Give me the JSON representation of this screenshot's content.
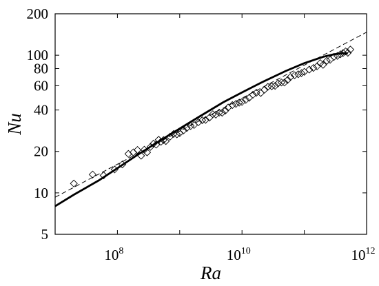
{
  "chart_data": {
    "type": "scatter",
    "xlabel": "Ra",
    "ylabel": "Nu",
    "x_scale": "log",
    "y_scale": "log",
    "xlim": [
      10000000.0,
      1000000000000.0
    ],
    "ylim": [
      5,
      200
    ],
    "grid": false,
    "x_ticks": [
      {
        "base": "10",
        "exp": "8",
        "value": 100000000.0
      },
      {
        "base": "10",
        "exp": "10",
        "value": 10000000000.0
      },
      {
        "base": "10",
        "exp": "12",
        "value": 1000000000000.0
      }
    ],
    "y_ticks": [
      {
        "label": "5",
        "value": 5
      },
      {
        "label": "10",
        "value": 10
      },
      {
        "label": "20",
        "value": 20
      },
      {
        "label": "40",
        "value": 40
      },
      {
        "label": "60",
        "value": 60
      },
      {
        "label": "80",
        "value": 80
      },
      {
        "label": "100",
        "value": 100
      },
      {
        "label": "200",
        "value": 200
      }
    ],
    "series": [
      {
        "marker": "diamond-open",
        "color": "#000000",
        "x": [
          20000000.0,
          40000000.0,
          60000000.0,
          90000000.0,
          120000000.0,
          150000000.0,
          180000000.0,
          210000000.0,
          240000000.0,
          270000000.0,
          300000000.0,
          340000000.0,
          380000000.0,
          420000000.0,
          460000000.0,
          500000000.0,
          550000000.0,
          600000000.0,
          700000000.0,
          800000000.0,
          900000000.0,
          1000000000.0,
          1150000000.0,
          1300000000.0,
          1500000000.0,
          1700000000.0,
          2000000000.0,
          2300000000.0,
          2600000000.0,
          3000000000.0,
          3400000000.0,
          3800000000.0,
          4300000000.0,
          4800000000.0,
          5400000000.0,
          6000000000.0,
          7000000000.0,
          8000000000.0,
          9000000000.0,
          10000000000.0,
          11500000000.0,
          13000000000.0,
          15000000000.0,
          17000000000.0,
          20000000000.0,
          23000000000.0,
          26000000000.0,
          30000000000.0,
          34000000000.0,
          38000000000.0,
          43000000000.0,
          48000000000.0,
          54000000000.0,
          60000000000.0,
          70000000000.0,
          80000000000.0,
          90000000000.0,
          100000000000.0,
          120000000000.0,
          140000000000.0,
          160000000000.0,
          180000000000.0,
          200000000000.0,
          230000000000.0,
          260000000000.0,
          300000000000.0,
          340000000000.0,
          380000000000.0,
          420000000000.0,
          460000000000.0,
          500000000000.0,
          550000000000.0
        ],
        "y": [
          11.7,
          13.6,
          13.4,
          14.8,
          16.1,
          19.2,
          19.7,
          20.5,
          18.6,
          20.6,
          19.7,
          21.6,
          22.8,
          22.4,
          24.3,
          23.5,
          24.2,
          23.8,
          25.6,
          26.8,
          26.6,
          27.2,
          28.4,
          29.6,
          30.6,
          31.1,
          32.6,
          33.7,
          33.9,
          35.2,
          37.3,
          37.0,
          38.3,
          38.2,
          39.6,
          41.7,
          43.4,
          44.3,
          45.2,
          45.8,
          47.4,
          49.0,
          51.7,
          53.4,
          53.1,
          56.2,
          58.9,
          59.4,
          59.9,
          62.4,
          63.4,
          63.3,
          66.1,
          69.5,
          71.5,
          72.7,
          74.1,
          75.8,
          78.6,
          80.8,
          83.0,
          87.6,
          85.1,
          91.1,
          92.7,
          97.3,
          98.9,
          101.7,
          103.8,
          106.6,
          104.1,
          109.9
        ]
      },
      {
        "style": "solid-thick",
        "color": "#000000",
        "x": [
          10000000.0,
          20000000.0,
          50000000.0,
          100000000.0,
          200000000.0,
          500000000.0,
          1000000000.0,
          2000000000.0,
          5000000000.0,
          10000000000.0,
          20000000000.0,
          50000000000.0,
          100000000000.0,
          200000000000.0,
          300000000000.0,
          400000000000.0,
          500000000000.0
        ],
        "y": [
          8.0,
          9.7,
          12.3,
          15.1,
          18.6,
          24.2,
          29.3,
          35.5,
          45.5,
          53.7,
          63.0,
          76.7,
          87.5,
          97.3,
          101.6,
          103.2,
          103.2
        ]
      },
      {
        "style": "dashed",
        "color": "#000000",
        "x": [
          10000000.0,
          1000000000000.0
        ],
        "y": [
          9.3,
          147.0
        ]
      }
    ]
  }
}
